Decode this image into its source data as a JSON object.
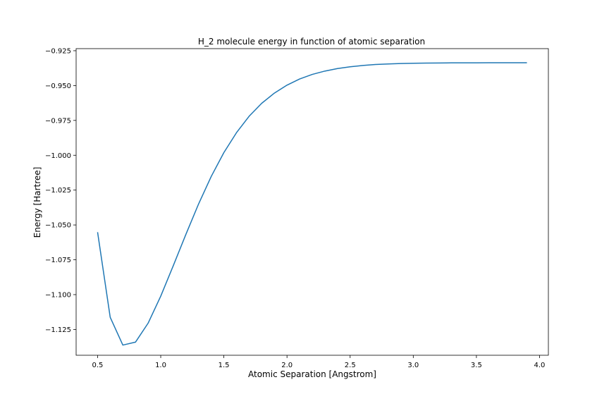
{
  "chart_data": {
    "type": "line",
    "title": "H_2 molecule energy in function of atomic separation",
    "xlabel": "Atomic Separation [Angstrom]",
    "ylabel": "Energy [Hartree]",
    "xlim": [
      0.33,
      4.07
    ],
    "ylim": [
      -1.1435,
      -0.9235
    ],
    "grid": false,
    "x_ticks": [
      0.5,
      1.0,
      1.5,
      2.0,
      2.5,
      3.0,
      3.5,
      4.0
    ],
    "x_tick_labels": [
      "0.5",
      "1.0",
      "1.5",
      "2.0",
      "2.5",
      "3.0",
      "3.5",
      "4.0"
    ],
    "y_ticks": [
      -0.925,
      -0.95,
      -0.975,
      -1.0,
      -1.025,
      -1.05,
      -1.075,
      -1.1,
      -1.125
    ],
    "y_tick_labels": [
      "−0.925",
      "−0.950",
      "−0.975",
      "−1.000",
      "−1.025",
      "−1.050",
      "−1.075",
      "−1.100",
      "−1.125"
    ],
    "line_color": "#1f77b4",
    "series": [
      {
        "x": [
          0.5,
          0.6,
          0.7,
          0.8,
          0.9,
          1.0,
          1.1,
          1.2,
          1.3,
          1.4,
          1.5,
          1.6,
          1.7,
          1.8,
          1.9,
          2.0,
          2.1,
          2.2,
          2.3,
          2.4,
          2.5,
          2.6,
          2.7,
          2.8,
          2.9,
          3.0,
          3.1,
          3.2,
          3.3,
          3.4,
          3.5,
          3.6,
          3.7,
          3.8,
          3.9
        ],
        "values": [
          -1.0552,
          -1.1163,
          -1.1362,
          -1.1341,
          -1.1205,
          -1.1011,
          -1.0791,
          -1.0566,
          -1.0349,
          -1.0152,
          -0.9981,
          -0.9838,
          -0.972,
          -0.9627,
          -0.9554,
          -0.9497,
          -0.9453,
          -0.942,
          -0.9396,
          -0.9378,
          -0.9365,
          -0.9356,
          -0.9349,
          -0.9345,
          -0.9342,
          -0.934,
          -0.9339,
          -0.9338,
          -0.9337,
          -0.9337,
          -0.9337,
          -0.9336,
          -0.9336,
          -0.9336,
          -0.9336
        ]
      }
    ]
  }
}
